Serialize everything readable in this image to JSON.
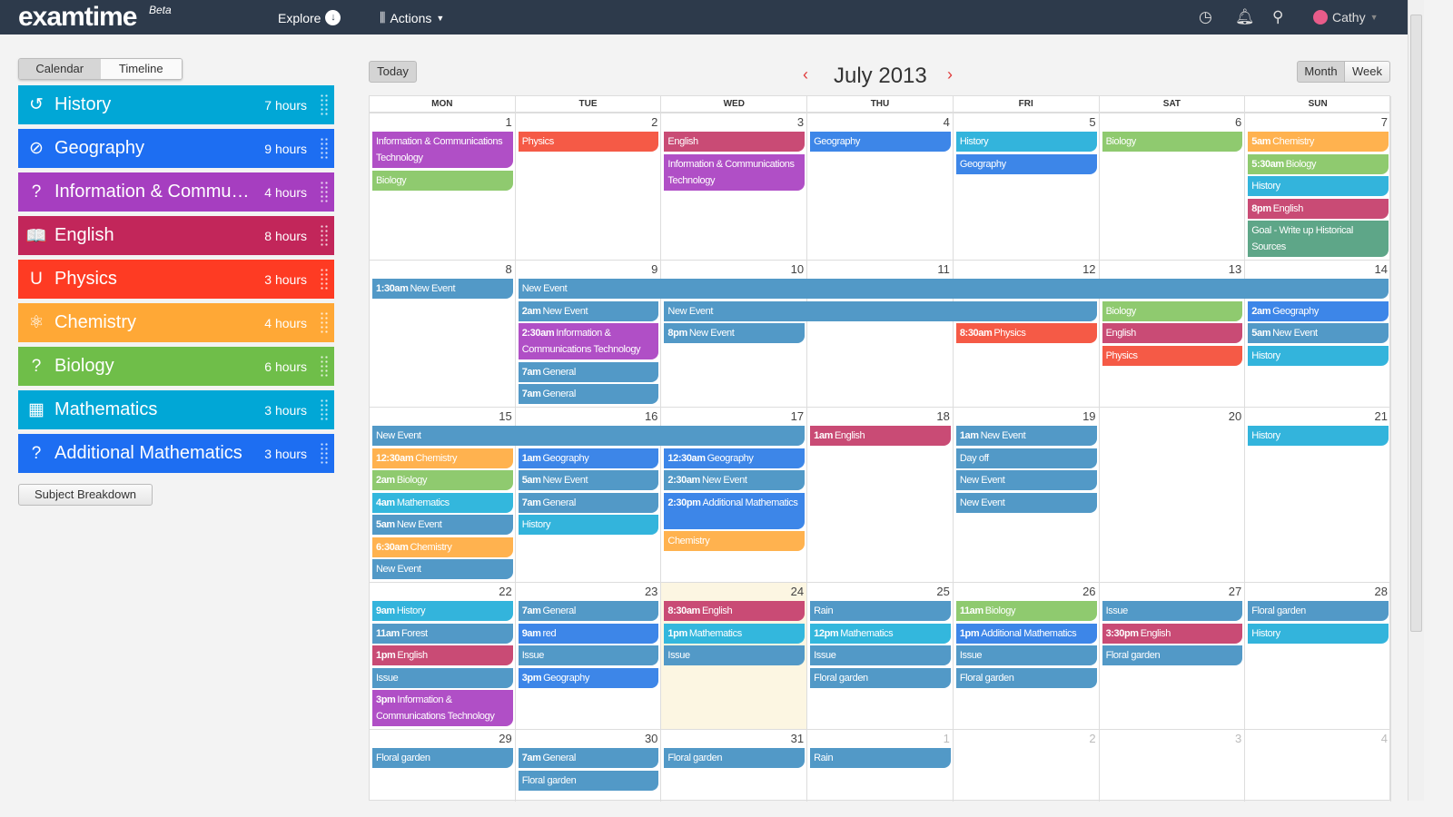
{
  "header": {
    "logo": "examtime",
    "logo_badge": "Beta",
    "explore": "Explore",
    "actions": "Actions",
    "user": "Cathy"
  },
  "sidebar": {
    "tabs": [
      "Calendar",
      "Timeline"
    ],
    "subjects": [
      {
        "name": "History",
        "hours": "7 hours",
        "color": "#01a7d6",
        "icon": "history-icon",
        "glyph": "↺"
      },
      {
        "name": "Geography",
        "hours": "9 hours",
        "color": "#1d6ef2",
        "icon": "compass-icon",
        "glyph": "⊘"
      },
      {
        "name": "Information & Communi...",
        "hours": "4 hours",
        "color": "#a63ec0",
        "icon": "question-icon",
        "glyph": "?"
      },
      {
        "name": "English",
        "hours": "8 hours",
        "color": "#c2265a",
        "icon": "book-icon",
        "glyph": "📖"
      },
      {
        "name": "Physics",
        "hours": "3 hours",
        "color": "#fe3b23",
        "icon": "magnet-icon",
        "glyph": "U"
      },
      {
        "name": "Chemistry",
        "hours": "4 hours",
        "color": "#ffa836",
        "icon": "atom-icon",
        "glyph": "⚛"
      },
      {
        "name": "Biology",
        "hours": "6 hours",
        "color": "#6fbe49",
        "icon": "question-icon",
        "glyph": "?"
      },
      {
        "name": "Mathematics",
        "hours": "3 hours",
        "color": "#01a7d6",
        "icon": "calculator-icon",
        "glyph": "▦"
      },
      {
        "name": "Additional Mathematics",
        "hours": "3 hours",
        "color": "#1d6ef2",
        "icon": "question-icon",
        "glyph": "?"
      }
    ],
    "breakdown": "Subject Breakdown"
  },
  "calendar": {
    "today": "Today",
    "title": "July 2013",
    "views": [
      "Month",
      "Week"
    ],
    "weekdays": [
      "MON",
      "TUE",
      "WED",
      "THU",
      "FRI",
      "SAT",
      "SUN"
    ],
    "colors": {
      "h": "#33b4dc",
      "g": "#3d86e8",
      "i": "#b04fc6",
      "e": "#c94b75",
      "p": "#f55a46",
      "c": "#ffb24f",
      "b": "#8fca6f",
      "m": "#33b7dd",
      "n": "#5299c7",
      "goal": "#5ea688"
    },
    "weeks": [
      {
        "days": [
          "1",
          "2",
          "3",
          "4",
          "5",
          "6",
          "7"
        ],
        "events": [
          {
            "d": 0,
            "s": 1,
            "t": "",
            "ti": "Information & Communications Technology",
            "c": "i",
            "l": 2
          },
          {
            "d": 0,
            "s": 1,
            "t": "",
            "ti": "Biology",
            "c": "b"
          },
          {
            "d": 1,
            "s": 1,
            "t": "",
            "ti": "Physics",
            "c": "p"
          },
          {
            "d": 2,
            "s": 1,
            "t": "",
            "ti": "English",
            "c": "e"
          },
          {
            "d": 2,
            "s": 1,
            "t": "",
            "ti": "Information & Communications Technology",
            "c": "i",
            "l": 2
          },
          {
            "d": 3,
            "s": 1,
            "t": "",
            "ti": "Geography",
            "c": "g"
          },
          {
            "d": 4,
            "s": 1,
            "t": "",
            "ti": "History",
            "c": "h"
          },
          {
            "d": 4,
            "s": 1,
            "t": "",
            "ti": "Geography",
            "c": "g"
          },
          {
            "d": 5,
            "s": 1,
            "t": "",
            "ti": "Biology",
            "c": "b"
          },
          {
            "d": 6,
            "s": 1,
            "t": "5am",
            "ti": "Chemistry",
            "c": "c"
          },
          {
            "d": 6,
            "s": 1,
            "t": "5:30am",
            "ti": "Biology",
            "c": "b"
          },
          {
            "d": 6,
            "s": 1,
            "t": "",
            "ti": "History",
            "c": "h"
          },
          {
            "d": 6,
            "s": 1,
            "t": "8pm",
            "ti": "English",
            "c": "e"
          },
          {
            "d": 6,
            "s": 1,
            "t": "",
            "ti": "Goal - Write up Historical Sources",
            "c": "goal",
            "l": 2
          }
        ]
      },
      {
        "days": [
          "8",
          "9",
          "10",
          "11",
          "12",
          "13",
          "14"
        ],
        "events": [
          {
            "d": 0,
            "s": 1,
            "t": "1:30am",
            "ti": "New Event",
            "c": "n"
          },
          {
            "d": 1,
            "s": 6,
            "t": "",
            "ti": "New Event",
            "c": "n"
          },
          {
            "d": 1,
            "s": 1,
            "t": "2am",
            "ti": "New Event",
            "c": "n"
          },
          {
            "d": 2,
            "s": 3,
            "t": "",
            "ti": "New Event",
            "c": "n"
          },
          {
            "d": 5,
            "s": 1,
            "t": "",
            "ti": "Biology",
            "c": "b"
          },
          {
            "d": 6,
            "s": 1,
            "t": "2am",
            "ti": "Geography",
            "c": "g"
          },
          {
            "d": 1,
            "s": 1,
            "t": "2:30am",
            "ti": "Information & Communications Technology",
            "c": "i",
            "l": 2
          },
          {
            "d": 2,
            "s": 1,
            "t": "8pm",
            "ti": "New Event",
            "c": "n"
          },
          {
            "d": 4,
            "s": 1,
            "t": "8:30am",
            "ti": "Physics",
            "c": "p"
          },
          {
            "d": 5,
            "s": 1,
            "t": "",
            "ti": "English",
            "c": "e"
          },
          {
            "d": 6,
            "s": 1,
            "t": "5am",
            "ti": "New Event",
            "c": "n"
          },
          {
            "d": 5,
            "s": 1,
            "t": "",
            "ti": "Physics",
            "c": "p"
          },
          {
            "d": 6,
            "s": 1,
            "t": "",
            "ti": "History",
            "c": "h"
          },
          {
            "d": 1,
            "s": 1,
            "t": "7am",
            "ti": "General",
            "c": "n"
          },
          {
            "d": 1,
            "s": 1,
            "t": "7am",
            "ti": "General",
            "c": "n"
          }
        ]
      },
      {
        "days": [
          "15",
          "16",
          "17",
          "18",
          "19",
          "20",
          "21"
        ],
        "events": [
          {
            "d": 0,
            "s": 3,
            "t": "",
            "ti": "New Event",
            "c": "n"
          },
          {
            "d": 3,
            "s": 1,
            "t": "1am",
            "ti": "English",
            "c": "e"
          },
          {
            "d": 4,
            "s": 1,
            "t": "1am",
            "ti": "New Event",
            "c": "n"
          },
          {
            "d": 6,
            "s": 1,
            "t": "",
            "ti": "History",
            "c": "h"
          },
          {
            "d": 0,
            "s": 1,
            "t": "12:30am",
            "ti": "Chemistry",
            "c": "c"
          },
          {
            "d": 1,
            "s": 1,
            "t": "1am",
            "ti": "Geography",
            "c": "g"
          },
          {
            "d": 2,
            "s": 1,
            "t": "12:30am",
            "ti": "Geography",
            "c": "g"
          },
          {
            "d": 4,
            "s": 1,
            "t": "",
            "ti": "Day off",
            "c": "n"
          },
          {
            "d": 0,
            "s": 1,
            "t": "2am",
            "ti": "Biology",
            "c": "b"
          },
          {
            "d": 1,
            "s": 1,
            "t": "5am",
            "ti": "New Event",
            "c": "n"
          },
          {
            "d": 2,
            "s": 1,
            "t": "2:30am",
            "ti": "New Event",
            "c": "n"
          },
          {
            "d": 4,
            "s": 1,
            "t": "",
            "ti": "New Event",
            "c": "n"
          },
          {
            "d": 0,
            "s": 1,
            "t": "4am",
            "ti": "Mathematics",
            "c": "m"
          },
          {
            "d": 1,
            "s": 1,
            "t": "7am",
            "ti": "General",
            "c": "n"
          },
          {
            "d": 2,
            "s": 1,
            "t": "2:30pm",
            "ti": "Additional Mathematics",
            "c": "g",
            "l": 2
          },
          {
            "d": 4,
            "s": 1,
            "t": "",
            "ti": "New Event",
            "c": "n"
          },
          {
            "d": 0,
            "s": 1,
            "t": "5am",
            "ti": "New Event",
            "c": "n"
          },
          {
            "d": 1,
            "s": 1,
            "t": "",
            "ti": "History",
            "c": "h"
          },
          {
            "d": 2,
            "s": 1,
            "t": "",
            "ti": "Chemistry",
            "c": "c"
          },
          {
            "d": 0,
            "s": 1,
            "t": "6:30am",
            "ti": "Chemistry",
            "c": "c"
          },
          {
            "d": 0,
            "s": 1,
            "t": "",
            "ti": "New Event",
            "c": "n"
          }
        ]
      },
      {
        "days": [
          "22",
          "23",
          "24",
          "25",
          "26",
          "27",
          "28"
        ],
        "today": 2,
        "events": [
          {
            "d": 0,
            "s": 1,
            "t": "9am",
            "ti": "History",
            "c": "h"
          },
          {
            "d": 0,
            "s": 1,
            "t": "11am",
            "ti": "Forest",
            "c": "n"
          },
          {
            "d": 0,
            "s": 1,
            "t": "1pm",
            "ti": "English",
            "c": "e"
          },
          {
            "d": 0,
            "s": 1,
            "t": "",
            "ti": "Issue",
            "c": "n"
          },
          {
            "d": 0,
            "s": 1,
            "t": "3pm",
            "ti": "Information & Communications Technology",
            "c": "i",
            "l": 2
          },
          {
            "d": 1,
            "s": 1,
            "t": "7am",
            "ti": "General",
            "c": "n"
          },
          {
            "d": 1,
            "s": 1,
            "t": "9am",
            "ti": "red",
            "c": "g"
          },
          {
            "d": 1,
            "s": 1,
            "t": "",
            "ti": "Issue",
            "c": "n"
          },
          {
            "d": 1,
            "s": 1,
            "t": "3pm",
            "ti": "Geography",
            "c": "g"
          },
          {
            "d": 2,
            "s": 1,
            "t": "8:30am",
            "ti": "English",
            "c": "e"
          },
          {
            "d": 2,
            "s": 1,
            "t": "1pm",
            "ti": "Mathematics",
            "c": "m"
          },
          {
            "d": 2,
            "s": 1,
            "t": "",
            "ti": "Issue",
            "c": "n"
          },
          {
            "d": 3,
            "s": 1,
            "t": "",
            "ti": "Rain",
            "c": "n"
          },
          {
            "d": 3,
            "s": 1,
            "t": "12pm",
            "ti": "Mathematics",
            "c": "m"
          },
          {
            "d": 3,
            "s": 1,
            "t": "",
            "ti": "Issue",
            "c": "n"
          },
          {
            "d": 3,
            "s": 1,
            "t": "",
            "ti": "Floral garden",
            "c": "n"
          },
          {
            "d": 4,
            "s": 1,
            "t": "11am",
            "ti": "Biology",
            "c": "b"
          },
          {
            "d": 4,
            "s": 1,
            "t": "1pm",
            "ti": "Additional Mathematics",
            "c": "g"
          },
          {
            "d": 4,
            "s": 1,
            "t": "",
            "ti": "Issue",
            "c": "n"
          },
          {
            "d": 4,
            "s": 1,
            "t": "",
            "ti": "Floral garden",
            "c": "n"
          },
          {
            "d": 5,
            "s": 1,
            "t": "",
            "ti": "Issue",
            "c": "n"
          },
          {
            "d": 5,
            "s": 1,
            "t": "3:30pm",
            "ti": "English",
            "c": "e"
          },
          {
            "d": 5,
            "s": 1,
            "t": "",
            "ti": "Floral garden",
            "c": "n"
          },
          {
            "d": 6,
            "s": 1,
            "t": "",
            "ti": "Floral garden",
            "c": "n"
          },
          {
            "d": 6,
            "s": 1,
            "t": "",
            "ti": "History",
            "c": "h"
          }
        ]
      },
      {
        "days": [
          "29",
          "30",
          "31",
          "1",
          "2",
          "3",
          "4"
        ],
        "other": [
          3,
          4,
          5,
          6
        ],
        "events": [
          {
            "d": 0,
            "s": 1,
            "t": "",
            "ti": "Floral garden",
            "c": "n"
          },
          {
            "d": 1,
            "s": 1,
            "t": "7am",
            "ti": "General",
            "c": "n"
          },
          {
            "d": 1,
            "s": 1,
            "t": "",
            "ti": "Floral garden",
            "c": "n"
          },
          {
            "d": 2,
            "s": 1,
            "t": "",
            "ti": "Floral garden",
            "c": "n"
          },
          {
            "d": 3,
            "s": 1,
            "t": "",
            "ti": "Rain",
            "c": "n"
          }
        ]
      }
    ]
  }
}
